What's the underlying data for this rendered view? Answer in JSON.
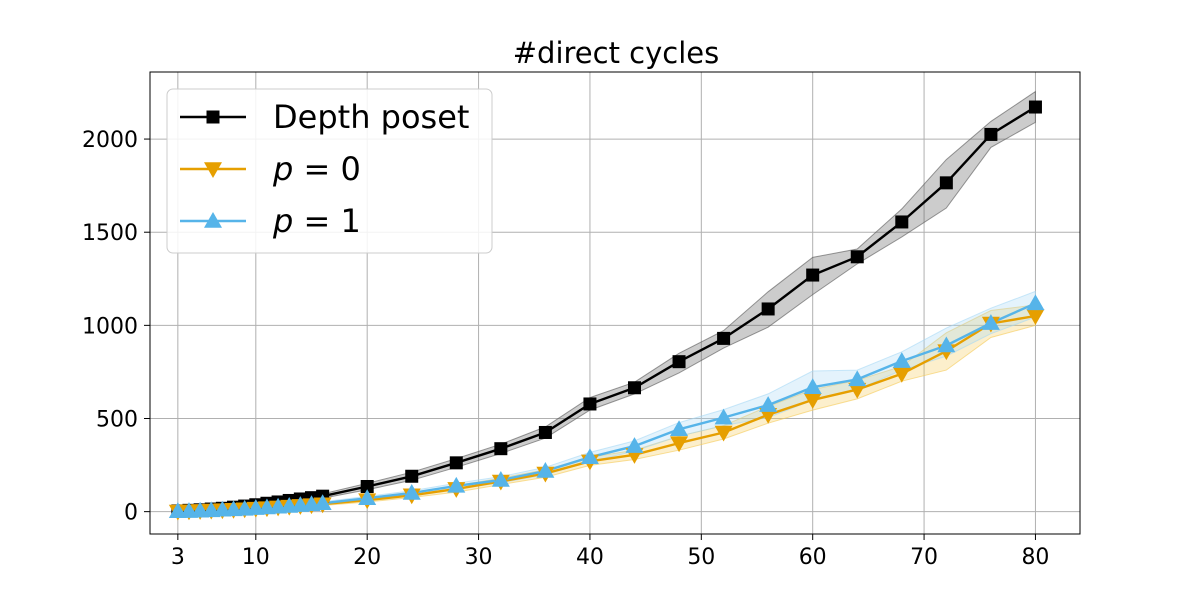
{
  "chart_data": {
    "type": "line",
    "title": "#direct cycles",
    "xlabel": "",
    "ylabel": "",
    "grid": true,
    "legend_position": "top-left",
    "xlim": [
      0.5,
      84.0
    ],
    "ylim": [
      -120,
      2360
    ],
    "x_ticks": [
      3,
      10,
      20,
      30,
      40,
      50,
      60,
      70,
      80
    ],
    "y_ticks": [
      0,
      500,
      1000,
      1500,
      2000
    ],
    "x_tick_labels": [
      "3",
      "10",
      "20",
      "30",
      "40",
      "50",
      "60",
      "70",
      "80"
    ],
    "y_tick_labels": [
      "0",
      "500",
      "1000",
      "1500",
      "2000"
    ],
    "x": [
      3,
      4,
      5,
      6,
      7,
      8,
      9,
      10,
      11,
      12,
      13,
      14,
      15,
      16,
      20,
      24,
      28,
      32,
      36,
      40,
      44,
      48,
      52,
      56,
      60,
      64,
      68,
      72,
      76,
      80
    ],
    "series": [
      {
        "name": "Depth poset",
        "label_text": "Depth poset",
        "color": "#000000",
        "band_color": "#555555",
        "marker": "square",
        "values": [
          4,
          7,
          10,
          14,
          18,
          24,
          30,
          37,
          45,
          52,
          60,
          68,
          75,
          83,
          135,
          190,
          262,
          338,
          425,
          578,
          665,
          805,
          930,
          1088,
          1270,
          1368,
          1555,
          1765,
          2025,
          2172
        ],
        "lower": [
          3,
          5,
          8,
          11,
          15,
          20,
          25,
          32,
          39,
          45,
          52,
          59,
          65,
          72,
          118,
          168,
          238,
          312,
          395,
          545,
          632,
          745,
          878,
          990,
          1165,
          1330,
          1475,
          1630,
          1955,
          2090
        ],
        "upper": [
          5,
          9,
          12,
          17,
          22,
          28,
          35,
          43,
          51,
          59,
          68,
          77,
          85,
          95,
          152,
          212,
          285,
          362,
          455,
          612,
          695,
          850,
          972,
          1180,
          1365,
          1410,
          1625,
          1890,
          2095,
          2255
        ]
      },
      {
        "name": "p = 0",
        "label_italic": "p",
        "label_rest": " = 0",
        "color": "#E69F00",
        "band_color": "#F5C955",
        "marker": "triangle-down",
        "values": [
          1,
          2,
          4,
          6,
          8,
          10,
          13,
          16,
          19,
          23,
          27,
          31,
          35,
          40,
          62,
          88,
          122,
          162,
          205,
          270,
          305,
          368,
          425,
          520,
          600,
          655,
          740,
          862,
          1010,
          1050
        ],
        "lower": [
          0,
          1,
          2,
          4,
          6,
          8,
          10,
          13,
          15,
          19,
          22,
          26,
          29,
          33,
          52,
          76,
          105,
          145,
          185,
          248,
          280,
          330,
          390,
          475,
          545,
          605,
          700,
          760,
          935,
          1000
        ],
        "upper": [
          2,
          3,
          6,
          8,
          11,
          13,
          16,
          20,
          23,
          27,
          32,
          37,
          41,
          47,
          72,
          102,
          140,
          180,
          225,
          292,
          330,
          405,
          462,
          565,
          655,
          705,
          780,
          960,
          1080,
          1110
        ]
      },
      {
        "name": "p = 1",
        "label_italic": "p",
        "label_rest": " = 1",
        "color": "#56B4E9",
        "band_color": "#A6D8F5",
        "marker": "triangle-up",
        "values": [
          2,
          3,
          5,
          7,
          10,
          12,
          15,
          19,
          22,
          26,
          30,
          35,
          40,
          45,
          72,
          100,
          138,
          170,
          218,
          292,
          352,
          442,
          505,
          572,
          668,
          710,
          808,
          892,
          1012,
          1118
        ],
        "lower": [
          1,
          2,
          3,
          5,
          8,
          10,
          12,
          15,
          18,
          21,
          25,
          29,
          33,
          38,
          62,
          88,
          122,
          155,
          198,
          268,
          325,
          405,
          462,
          505,
          598,
          655,
          760,
          835,
          955,
          1045
        ],
        "upper": [
          3,
          5,
          7,
          9,
          12,
          15,
          18,
          23,
          26,
          31,
          35,
          41,
          47,
          53,
          82,
          112,
          152,
          188,
          238,
          318,
          380,
          478,
          548,
          632,
          755,
          760,
          858,
          985,
          1092,
          1182
        ]
      }
    ]
  }
}
